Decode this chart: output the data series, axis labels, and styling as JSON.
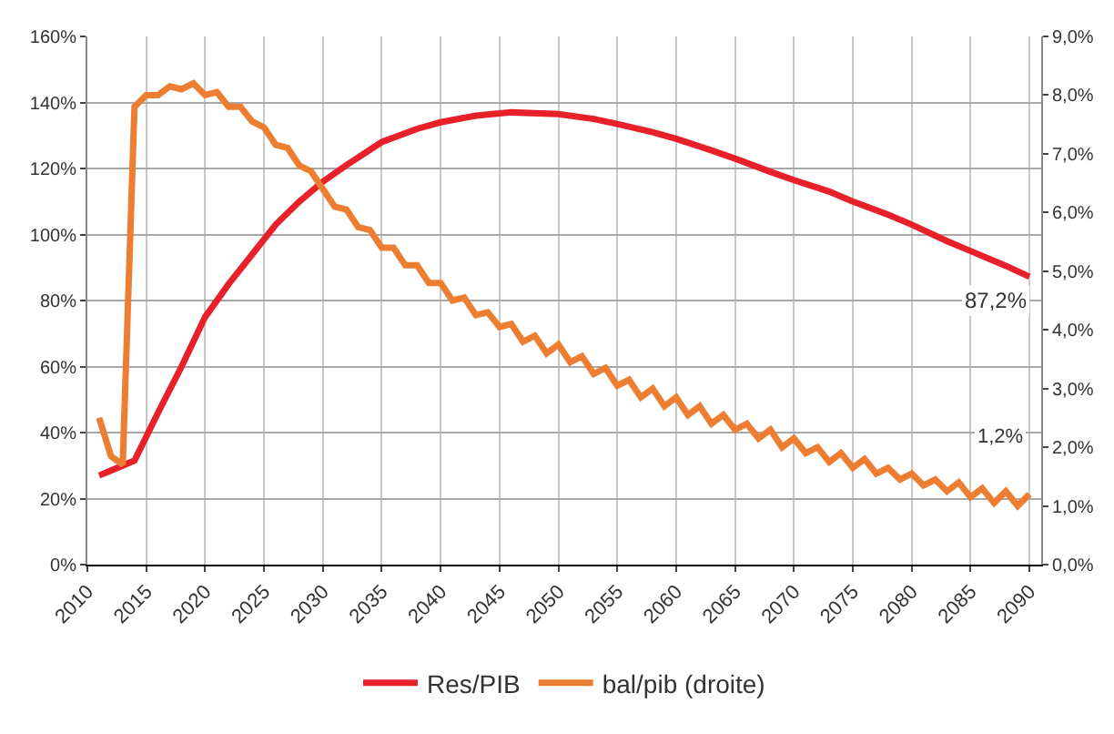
{
  "chart_data": {
    "type": "line",
    "xlim": [
      2010,
      2091
    ],
    "xticks": [
      2010,
      2015,
      2020,
      2025,
      2030,
      2035,
      2040,
      2045,
      2050,
      2055,
      2060,
      2065,
      2070,
      2075,
      2080,
      2085,
      2090
    ],
    "ylim": [
      0,
      160
    ],
    "yticks": [
      {
        "value": 0,
        "label": "0%"
      },
      {
        "value": 20,
        "label": "20%"
      },
      {
        "value": 40,
        "label": "40%"
      },
      {
        "value": 60,
        "label": "60%"
      },
      {
        "value": 80,
        "label": "80%"
      },
      {
        "value": 100,
        "label": "100%"
      },
      {
        "value": 120,
        "label": "120%"
      },
      {
        "value": 140,
        "label": "140%"
      },
      {
        "value": 160,
        "label": "160%"
      }
    ],
    "y2lim": [
      0,
      9
    ],
    "y2ticks": [
      {
        "value": 0,
        "label": "0,0%"
      },
      {
        "value": 1,
        "label": "1,0%"
      },
      {
        "value": 2,
        "label": "2,0%"
      },
      {
        "value": 3,
        "label": "3,0%"
      },
      {
        "value": 4,
        "label": "4,0%"
      },
      {
        "value": 5,
        "label": "5,0%"
      },
      {
        "value": 6,
        "label": "6,0%"
      },
      {
        "value": 7,
        "label": "7,0%"
      },
      {
        "value": 8,
        "label": "8,0%"
      },
      {
        "value": 9,
        "label": "9,0%"
      }
    ],
    "grid": true,
    "legend": "bottom",
    "marker": "none",
    "line_style": "solid",
    "series": [
      {
        "name": "Res/PIB",
        "color": "#e8202a",
        "x": [
          2011,
          2012,
          2013,
          2014,
          2016,
          2018,
          2020,
          2022,
          2024,
          2026,
          2028,
          2030,
          2032,
          2035,
          2038,
          2040,
          2043,
          2046,
          2050,
          2053,
          2055,
          2058,
          2060,
          2063,
          2065,
          2068,
          2070,
          2073,
          2075,
          2078,
          2080,
          2083,
          2085,
          2088,
          2090
        ],
        "values": [
          27,
          28.5,
          30,
          31.5,
          46,
          60,
          75,
          85,
          94,
          103,
          110,
          116,
          121,
          128,
          132,
          134,
          136,
          137,
          136.5,
          135,
          133.5,
          131,
          129,
          125.5,
          123,
          119,
          116.5,
          113,
          110,
          106,
          103,
          98,
          95,
          90.5,
          87.2
        ]
      },
      {
        "name": "bal/pib (droite)",
        "color": "#ed7d31",
        "axis": "y2",
        "x": [
          2011,
          2012,
          2013,
          2014,
          2015,
          2016,
          2017,
          2018,
          2019,
          2020,
          2021,
          2022,
          2023,
          2024,
          2025,
          2026,
          2027,
          2028,
          2029,
          2030,
          2031,
          2032,
          2033,
          2034,
          2035,
          2036,
          2037,
          2038,
          2039,
          2040,
          2041,
          2042,
          2043,
          2044,
          2045,
          2046,
          2047,
          2048,
          2049,
          2050,
          2051,
          2052,
          2053,
          2054,
          2055,
          2056,
          2057,
          2058,
          2059,
          2060,
          2061,
          2062,
          2063,
          2064,
          2065,
          2066,
          2067,
          2068,
          2069,
          2070,
          2071,
          2072,
          2073,
          2074,
          2075,
          2076,
          2077,
          2078,
          2079,
          2080,
          2081,
          2082,
          2083,
          2084,
          2085,
          2086,
          2087,
          2088,
          2089,
          2090
        ],
        "values": [
          2.5,
          1.85,
          1.7,
          7.8,
          8.0,
          8.0,
          8.15,
          8.1,
          8.2,
          8.0,
          8.05,
          7.8,
          7.8,
          7.55,
          7.45,
          7.15,
          7.1,
          6.8,
          6.7,
          6.4,
          6.1,
          6.05,
          5.75,
          5.7,
          5.4,
          5.4,
          5.1,
          5.1,
          4.8,
          4.8,
          4.5,
          4.55,
          4.25,
          4.3,
          4.05,
          4.1,
          3.8,
          3.9,
          3.6,
          3.75,
          3.45,
          3.55,
          3.25,
          3.35,
          3.05,
          3.15,
          2.85,
          3.0,
          2.7,
          2.85,
          2.55,
          2.7,
          2.4,
          2.55,
          2.3,
          2.4,
          2.15,
          2.3,
          2.0,
          2.15,
          1.9,
          2.0,
          1.75,
          1.9,
          1.65,
          1.8,
          1.55,
          1.65,
          1.45,
          1.55,
          1.35,
          1.45,
          1.25,
          1.4,
          1.15,
          1.3,
          1.05,
          1.25,
          1.0,
          1.2
        ]
      }
    ],
    "annotations": [
      {
        "text": "87,2%",
        "x": 2090,
        "y": 87.2
      },
      "1,2%"
    ]
  }
}
